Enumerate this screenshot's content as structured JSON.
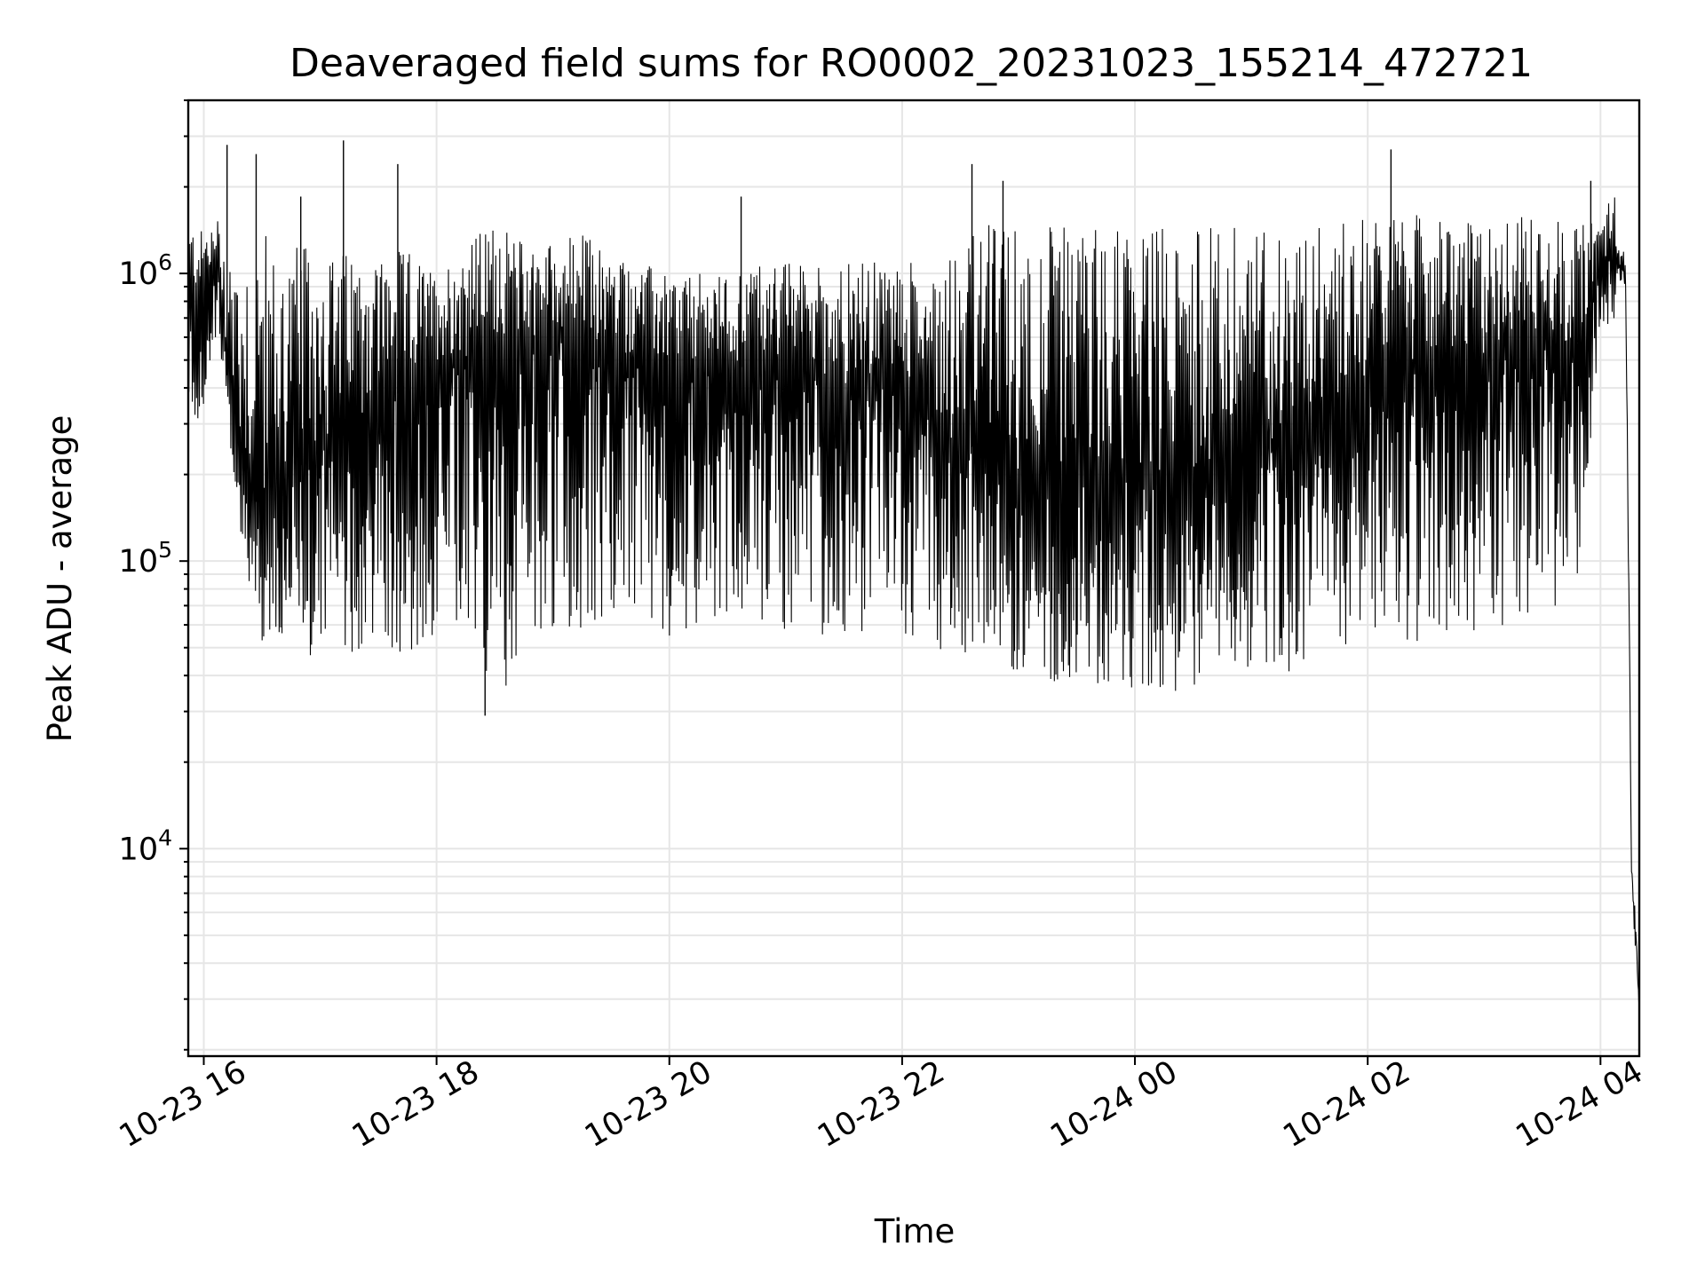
{
  "chart_data": {
    "type": "line",
    "title": "Deaveraged field sums for RO0002_20231023_155214_472721",
    "xlabel": "Time",
    "ylabel": "Peak ADU - average",
    "y_scale": "log",
    "ylim": [
      1900,
      4000000
    ],
    "xlim": [
      "2023-10-23 15:52",
      "2023-10-24 04:20"
    ],
    "x_ticks": [
      {
        "value": "2023-10-23 16:00",
        "label": "10-23 16"
      },
      {
        "value": "2023-10-23 18:00",
        "label": "10-23 18"
      },
      {
        "value": "2023-10-23 20:00",
        "label": "10-23 20"
      },
      {
        "value": "2023-10-23 22:00",
        "label": "10-23 22"
      },
      {
        "value": "2023-10-24 00:00",
        "label": "10-24 00"
      },
      {
        "value": "2023-10-24 02:00",
        "label": "10-24 02"
      },
      {
        "value": "2023-10-24 04:00",
        "label": "10-24 04"
      }
    ],
    "y_ticks": [
      {
        "value": 10000,
        "base": "10",
        "exp": "4"
      },
      {
        "value": 100000,
        "base": "10",
        "exp": "5"
      },
      {
        "value": 1000000,
        "base": "10",
        "exp": "6"
      }
    ],
    "grid": true,
    "legend": "none",
    "line_color": "#000000",
    "grid_color": "#e6e6e6",
    "series": [
      {
        "x": [
          "2023-10-23 15:52",
          "2023-10-23 16:00",
          "2023-10-23 16:08",
          "2023-10-23 16:15",
          "2023-10-23 16:22",
          "2023-10-23 16:30",
          "2023-10-23 16:37",
          "2023-10-23 16:45",
          "2023-10-23 17:00",
          "2023-10-23 17:15",
          "2023-10-23 17:30",
          "2023-10-23 17:45",
          "2023-10-23 18:00",
          "2023-10-23 18:15",
          "2023-10-23 18:30",
          "2023-10-23 18:45",
          "2023-10-23 19:00",
          "2023-10-23 19:15",
          "2023-10-23 19:30",
          "2023-10-23 19:45",
          "2023-10-23 20:00",
          "2023-10-23 20:15",
          "2023-10-23 20:30",
          "2023-10-23 20:45",
          "2023-10-23 21:00",
          "2023-10-23 21:15",
          "2023-10-23 21:30",
          "2023-10-23 21:45",
          "2023-10-23 22:00",
          "2023-10-23 22:15",
          "2023-10-23 22:30",
          "2023-10-23 22:45",
          "2023-10-23 23:00",
          "2023-10-23 23:15",
          "2023-10-23 23:30",
          "2023-10-23 23:45",
          "2023-10-24 00:00",
          "2023-10-24 00:15",
          "2023-10-24 00:30",
          "2023-10-24 00:45",
          "2023-10-24 01:00",
          "2023-10-24 01:15",
          "2023-10-24 01:30",
          "2023-10-24 01:45",
          "2023-10-24 02:00",
          "2023-10-24 02:15",
          "2023-10-24 02:30",
          "2023-10-24 02:45",
          "2023-10-24 03:00",
          "2023-10-24 03:15",
          "2023-10-24 03:30",
          "2023-10-24 03:45",
          "2023-10-24 04:00",
          "2023-10-24 04:08",
          "2023-10-24 04:13",
          "2023-10-24 04:16",
          "2023-10-24 04:18",
          "2023-10-24 04:20"
        ],
        "low": [
          280000,
          300000,
          600000,
          200000,
          90000,
          50000,
          45000,
          50000,
          45000,
          45000,
          50000,
          40000,
          55000,
          50000,
          30000,
          50000,
          50000,
          55000,
          60000,
          65000,
          55000,
          60000,
          65000,
          60000,
          55000,
          55000,
          50000,
          60000,
          55000,
          50000,
          45000,
          45000,
          40000,
          38000,
          38000,
          36000,
          36000,
          35000,
          36000,
          40000,
          42000,
          38000,
          45000,
          50000,
          55000,
          55000,
          50000,
          55000,
          55000,
          55000,
          60000,
          55000,
          600000,
          700000,
          300000,
          9000,
          4500,
          2600
        ],
        "high": [
          1500000,
          1400000,
          1600000,
          1400000,
          1300000,
          1500000,
          1200000,
          1300000,
          1200000,
          1200000,
          1200000,
          1200000,
          1000000,
          1300000,
          1500000,
          1300000,
          1300000,
          1400000,
          1200000,
          1100000,
          1000000,
          1000000,
          1000000,
          1100000,
          1100000,
          1100000,
          1100000,
          1100000,
          1100000,
          1200000,
          1400000,
          1500000,
          1500000,
          1500000,
          1500000,
          1500000,
          1500000,
          1500000,
          1500000,
          1500000,
          1500000,
          1500000,
          1500000,
          1600000,
          1600000,
          1600000,
          1600000,
          1500000,
          1500000,
          1600000,
          1600000,
          1500000,
          1600000,
          2000000,
          1600000,
          300000,
          10000,
          6000
        ],
        "median": [
          800000,
          900000,
          950000,
          250000,
          180000,
          150000,
          150000,
          200000,
          250000,
          300000,
          350000,
          400000,
          500000,
          500000,
          600000,
          600000,
          600000,
          550000,
          500000,
          500000,
          450000,
          450000,
          450000,
          500000,
          500000,
          450000,
          400000,
          400000,
          400000,
          300000,
          250000,
          250000,
          200000,
          200000,
          200000,
          200000,
          200000,
          200000,
          200000,
          200000,
          220000,
          250000,
          300000,
          350000,
          450000,
          500000,
          500000,
          500000,
          500000,
          550000,
          600000,
          500000,
          1000000,
          1200000,
          1000000,
          9000,
          5000,
          2600
        ],
        "spikes": [
          {
            "x": "2023-10-23 16:12",
            "y": 2800000
          },
          {
            "x": "2023-10-23 16:27",
            "y": 2600000
          },
          {
            "x": "2023-10-23 16:50",
            "y": 1850000
          },
          {
            "x": "2023-10-23 17:12",
            "y": 2900000
          },
          {
            "x": "2023-10-23 17:40",
            "y": 2400000
          },
          {
            "x": "2023-10-23 18:25",
            "y": 29000
          },
          {
            "x": "2023-10-23 20:37",
            "y": 1850000
          },
          {
            "x": "2023-10-23 22:36",
            "y": 2400000
          },
          {
            "x": "2023-10-23 22:52",
            "y": 2100000
          },
          {
            "x": "2023-10-24 02:12",
            "y": 2700000
          },
          {
            "x": "2023-10-24 03:55",
            "y": 2100000
          }
        ]
      }
    ]
  }
}
